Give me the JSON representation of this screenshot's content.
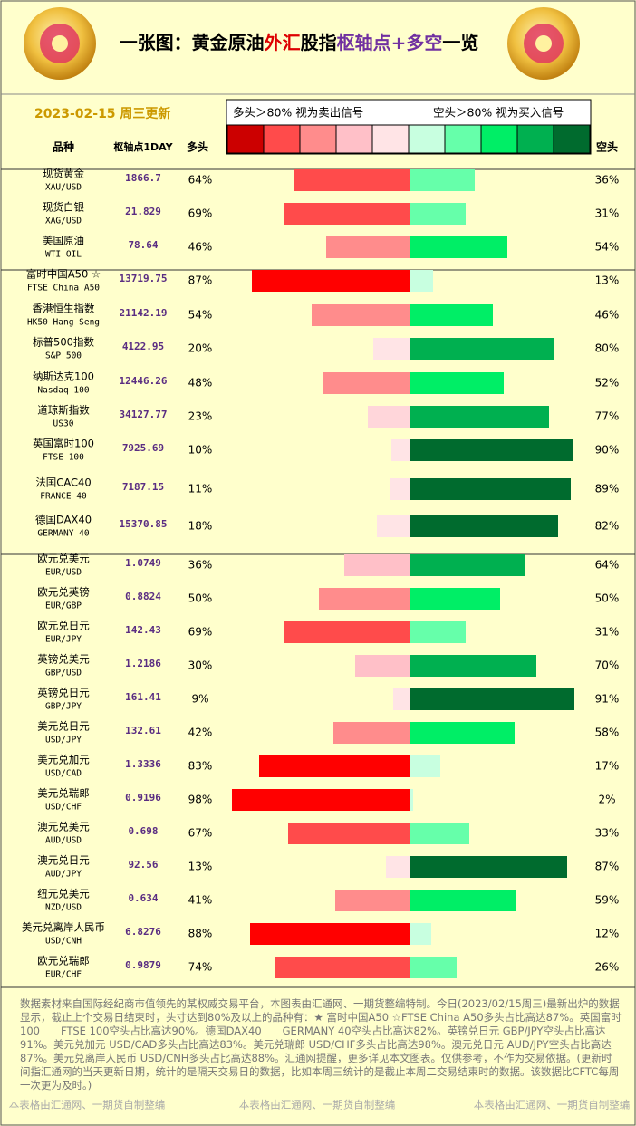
{
  "chart_data": {
    "type": "diverging_bar",
    "title_parts": [
      {
        "text": "一张图：黄金原油",
        "color": "#000000"
      },
      {
        "text": "外汇",
        "color": "#dd0000"
      },
      {
        "text": "股指",
        "color": "#000000"
      },
      {
        "text": "枢轴点+多空",
        "color": "#7030a0"
      },
      {
        "text": "一览",
        "color": "#000000"
      }
    ],
    "date": "2023-02-15 周三更新",
    "legend_texts": [
      "多头＞80% 视为卖出信号",
      "空头＞80% 视为买入信号"
    ],
    "legend_colors": [
      "#cc0000",
      "#ff4b4b",
      "#ff8c8c",
      "#ffc0c8",
      "#ffe4e6",
      "#c8ffe0",
      "#66ffaa",
      "#00ee66",
      "#00b050",
      "#006b2e"
    ],
    "columns": [
      "品种",
      "枢轴点1DAY"
    ],
    "categories": [
      "现货黄金",
      "现货白银",
      "美国原油",
      "富时中国A50 ☆",
      "香港恒生指数",
      "标普500指数",
      "纳斯达克100",
      "道琼斯指数",
      "英国富时100",
      "法国CAC40",
      "德国DAX40",
      "欧元兑美元",
      "欧元兑英镑",
      "欧元兑日元",
      "英镑兑美元",
      "英镑兑日元",
      "美元兑日元",
      "美元兑加元",
      "美元兑瑞郎",
      "澳元兑美元",
      "澳元兑日元",
      "纽元兑美元",
      "美元兑离岸人民币",
      "欧元兑瑞郎"
    ],
    "codes": [
      "XAU/USD",
      "XAG/USD",
      "WTI OIL",
      "FTSE China A50",
      "HK50 Hang Seng",
      "S&P 500",
      "Nasdaq 100",
      "US30",
      "FTSE 100",
      "FRANCE 40",
      "GERMANY 40",
      "EUR/USD",
      "EUR/GBP",
      "EUR/JPY",
      "GBP/USD",
      "GBP/JPY",
      "USD/JPY",
      "USD/CAD",
      "USD/CHF",
      "AUD/USD",
      "AUD/JPY",
      "NZD/USD",
      "USD/CNH",
      "EUR/CHF"
    ],
    "pivots": [
      1866.7,
      21.829,
      78.64,
      13719.75,
      21142.19,
      4122.95,
      12446.26,
      34127.77,
      7925.69,
      7187.15,
      15370.85,
      1.0749,
      0.8824,
      142.43,
      1.2186,
      161.41,
      132.61,
      1.3336,
      0.9196,
      0.698,
      92.56,
      0.634,
      6.8276,
      0.9879
    ],
    "series": [
      {
        "name": "多头",
        "values": [
          64,
          69,
          46,
          87,
          54,
          20,
          48,
          23,
          10,
          11,
          18,
          36,
          50,
          69,
          30,
          9,
          42,
          83,
          98,
          67,
          13,
          41,
          88,
          74
        ],
        "value_labels": [
          "64%",
          "69%",
          "46%",
          "87%",
          "54%",
          "20%",
          "48%",
          "23%",
          "10%",
          "11%",
          "18%",
          "36%",
          "50%",
          "69%",
          "30%",
          "9%",
          "42%",
          "83%",
          "98%",
          "67%",
          "13%",
          "41%",
          "88%",
          "74%"
        ],
        "colors": [
          "#ff4b4b",
          "#ff4b4b",
          "#ff8c8c",
          "#ff0000",
          "#ff8c8c",
          "#ffe4e6",
          "#ff8c8c",
          "#ffd6da",
          "#ffe4e6",
          "#ffe4e6",
          "#ffe4e6",
          "#ffc0c8",
          "#ff8c8c",
          "#ff4b4b",
          "#ffc0c8",
          "#ffe4e6",
          "#ff8c8c",
          "#ff0000",
          "#ff0000",
          "#ff4b4b",
          "#ffe4e6",
          "#ff8c8c",
          "#ff0000",
          "#ff4b4b"
        ]
      },
      {
        "name": "空头",
        "values": [
          36,
          31,
          54,
          13,
          46,
          80,
          52,
          77,
          90,
          89,
          82,
          64,
          50,
          31,
          70,
          91,
          58,
          17,
          2,
          33,
          87,
          59,
          12,
          26
        ],
        "value_labels": [
          "36%",
          "31%",
          "54%",
          "13%",
          "46%",
          "80%",
          "52%",
          "77%",
          "90%",
          "89%",
          "82%",
          "64%",
          "50%",
          "31%",
          "70%",
          "91%",
          "58%",
          "17%",
          "2%",
          "33%",
          "87%",
          "59%",
          "12%",
          "26%"
        ],
        "colors": [
          "#66ffaa",
          "#66ffaa",
          "#00ee66",
          "#c8ffe0",
          "#00ee66",
          "#00b050",
          "#00ee66",
          "#00b050",
          "#006b2e",
          "#006b2e",
          "#006b2e",
          "#00b050",
          "#00ee66",
          "#66ffaa",
          "#00b050",
          "#006b2e",
          "#00ee66",
          "#c8ffe0",
          "#c8ffe0",
          "#66ffaa",
          "#006b2e",
          "#00ee66",
          "#c8ffe0",
          "#66ffaa"
        ]
      }
    ],
    "footnote": "数据素材来自国际经纪商市值领先的某权威交易平台，本图表由汇通网、一期货整编特制。今日(2023/02/15周三)最新出炉的数据显示，截止上个交易日结束时，头寸达到80%及以上的品种有：★ 富时中国A50 ☆FTSE China A50多头占比高达87%。英国富时100　　FTSE 100空头占比高达90%。德国DAX40　　GERMANY 40空头占比高达82%。英镑兑日元 GBP/JPY空头占比高达91%。美元兑加元 USD/CAD多头占比高达83%。美元兑瑞郎 USD/CHF多头占比高达98%。澳元兑日元 AUD/JPY空头占比高达87%。美元兑离岸人民币 USD/CNH多头占比高达88%。汇通网提醒，更多详见本文图表。仅供参考，不作为交易依据。(更新时间指汇通网的当天更新日期，统计的是隔天交易日的数据，比如本周三统计的是截止本周二交易结束时的数据。该数据比CFTC每周一次更为及时。)",
    "credits": [
      "本表格由汇通网、一期货自制整编",
      "本表格由汇通网、一期货自制整编",
      "本表格由汇通网、一期货自制整编"
    ]
  }
}
